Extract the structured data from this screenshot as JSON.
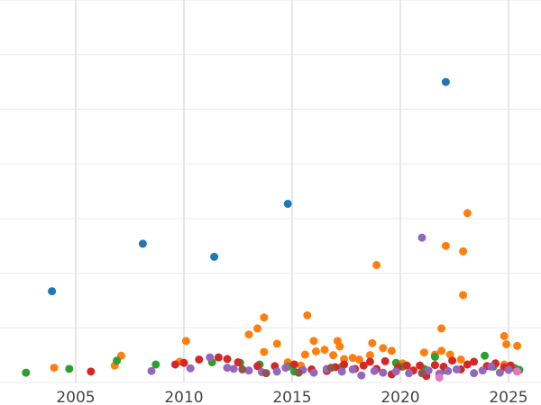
{
  "chart_data": {
    "type": "scatter",
    "title": "",
    "xlabel": "",
    "ylabel": "",
    "xlim": [
      2001.5,
      2026.5
    ],
    "ylim": [
      0,
      7
    ],
    "grid": true,
    "legend": "none",
    "x_ticks": [
      {
        "value": 2005,
        "label": "2005"
      },
      {
        "value": 2010,
        "label": "2010"
      },
      {
        "value": 2015,
        "label": "2015"
      },
      {
        "value": 2020,
        "label": "2020"
      },
      {
        "value": 2025,
        "label": "2025"
      }
    ],
    "y_grid": [
      0,
      1,
      2,
      3,
      4,
      5,
      6,
      7
    ],
    "series": [
      {
        "color": "#1f77b4",
        "points": [
          [
            2003.9,
            1.67
          ],
          [
            2008.1,
            2.54
          ],
          [
            2011.4,
            2.3
          ],
          [
            2014.8,
            3.27
          ],
          [
            2022.1,
            5.5
          ]
        ]
      },
      {
        "color": "#ff7f0e",
        "points": [
          [
            2004.0,
            0.27
          ],
          [
            2006.8,
            0.31
          ],
          [
            2007.1,
            0.49
          ],
          [
            2009.8,
            0.38
          ],
          [
            2010.1,
            0.76
          ],
          [
            2013.0,
            0.88
          ],
          [
            2013.4,
            0.99
          ],
          [
            2013.7,
            1.19
          ],
          [
            2013.7,
            0.56
          ],
          [
            2014.3,
            0.71
          ],
          [
            2014.8,
            0.37
          ],
          [
            2015.4,
            0.31
          ],
          [
            2015.6,
            0.51
          ],
          [
            2015.7,
            1.23
          ],
          [
            2016.0,
            0.76
          ],
          [
            2016.1,
            0.57
          ],
          [
            2016.5,
            0.6
          ],
          [
            2016.9,
            0.5
          ],
          [
            2017.1,
            0.76
          ],
          [
            2017.2,
            0.66
          ],
          [
            2017.4,
            0.43
          ],
          [
            2017.8,
            0.45
          ],
          [
            2018.1,
            0.42
          ],
          [
            2018.6,
            0.5
          ],
          [
            2018.7,
            0.72
          ],
          [
            2018.9,
            2.15
          ],
          [
            2019.2,
            0.63
          ],
          [
            2019.6,
            0.58
          ],
          [
            2020.1,
            0.35
          ],
          [
            2021.1,
            0.55
          ],
          [
            2021.6,
            0.51
          ],
          [
            2021.9,
            0.99
          ],
          [
            2021.9,
            0.58
          ],
          [
            2022.1,
            2.5
          ],
          [
            2022.3,
            0.51
          ],
          [
            2022.8,
            0.42
          ],
          [
            2022.9,
            2.4
          ],
          [
            2022.9,
            1.6
          ],
          [
            2023.1,
            3.1
          ],
          [
            2024.8,
            0.85
          ],
          [
            2024.9,
            0.7
          ],
          [
            2024.8,
            0.33
          ],
          [
            2025.4,
            0.67
          ]
        ]
      },
      {
        "color": "#2ca02c",
        "points": [
          [
            2002.7,
            0.18
          ],
          [
            2004.7,
            0.25
          ],
          [
            2006.9,
            0.4
          ],
          [
            2008.7,
            0.33
          ],
          [
            2011.3,
            0.37
          ],
          [
            2012.6,
            0.36
          ],
          [
            2013.5,
            0.33
          ],
          [
            2014.8,
            0.29
          ],
          [
            2015.1,
            0.2
          ],
          [
            2017.3,
            0.29
          ],
          [
            2019.8,
            0.36
          ],
          [
            2020.1,
            0.29
          ],
          [
            2021.1,
            0.25
          ],
          [
            2021.6,
            0.47
          ],
          [
            2022.1,
            0.22
          ],
          [
            2023.9,
            0.49
          ],
          [
            2024.3,
            0.29
          ],
          [
            2025.3,
            0.26
          ],
          [
            2025.5,
            0.23
          ]
        ]
      },
      {
        "color": "#d62728",
        "points": [
          [
            2005.7,
            0.2
          ],
          [
            2009.6,
            0.33
          ],
          [
            2010.0,
            0.36
          ],
          [
            2010.7,
            0.42
          ],
          [
            2011.6,
            0.46
          ],
          [
            2012.0,
            0.43
          ],
          [
            2012.5,
            0.37
          ],
          [
            2013.4,
            0.3
          ],
          [
            2014.2,
            0.3
          ],
          [
            2015.1,
            0.33
          ],
          [
            2015.9,
            0.24
          ],
          [
            2016.6,
            0.21
          ],
          [
            2017.0,
            0.28
          ],
          [
            2017.4,
            0.33
          ],
          [
            2017.9,
            0.25
          ],
          [
            2018.3,
            0.31
          ],
          [
            2018.6,
            0.38
          ],
          [
            2018.9,
            0.25
          ],
          [
            2019.3,
            0.39
          ],
          [
            2019.6,
            0.15
          ],
          [
            2019.9,
            0.28
          ],
          [
            2020.3,
            0.31
          ],
          [
            2020.6,
            0.22
          ],
          [
            2020.9,
            0.31
          ],
          [
            2021.2,
            0.12
          ],
          [
            2021.6,
            0.32
          ],
          [
            2022.0,
            0.29
          ],
          [
            2022.4,
            0.4
          ],
          [
            2022.8,
            0.24
          ],
          [
            2023.1,
            0.33
          ],
          [
            2023.4,
            0.38
          ],
          [
            2024.0,
            0.3
          ],
          [
            2024.4,
            0.35
          ],
          [
            2024.8,
            0.28
          ],
          [
            2025.1,
            0.31
          ]
        ]
      },
      {
        "color": "#9467bd",
        "points": [
          [
            2008.5,
            0.21
          ],
          [
            2010.3,
            0.26
          ],
          [
            2011.2,
            0.46
          ],
          [
            2012.0,
            0.27
          ],
          [
            2012.3,
            0.25
          ],
          [
            2013.0,
            0.22
          ],
          [
            2013.6,
            0.19
          ],
          [
            2014.3,
            0.2
          ],
          [
            2014.7,
            0.27
          ],
          [
            2015.5,
            0.23
          ],
          [
            2016.0,
            0.18
          ],
          [
            2016.6,
            0.25
          ],
          [
            2017.3,
            0.2
          ],
          [
            2017.8,
            0.24
          ],
          [
            2018.2,
            0.13
          ],
          [
            2018.8,
            0.21
          ],
          [
            2019.2,
            0.18
          ],
          [
            2019.8,
            0.2
          ],
          [
            2020.4,
            0.17
          ],
          [
            2021.0,
            2.65
          ],
          [
            2021.3,
            0.22
          ],
          [
            2021.8,
            0.16
          ],
          [
            2022.2,
            0.21
          ],
          [
            2022.6,
            0.24
          ],
          [
            2023.4,
            0.17
          ],
          [
            2023.8,
            0.22
          ],
          [
            2024.2,
            0.29
          ],
          [
            2024.6,
            0.18
          ],
          [
            2025.0,
            0.23
          ],
          [
            2025.4,
            0.2
          ]
        ]
      },
      {
        "color": "#8c564b",
        "points": [
          [
            2012.7,
            0.24
          ],
          [
            2013.8,
            0.17
          ],
          [
            2015.3,
            0.18
          ],
          [
            2016.8,
            0.27
          ],
          [
            2021.0,
            0.17
          ]
        ]
      },
      {
        "color": "#e377c2",
        "points": [
          [
            2021.8,
            0.09
          ],
          [
            2025.4,
            0.2
          ]
        ]
      }
    ]
  }
}
